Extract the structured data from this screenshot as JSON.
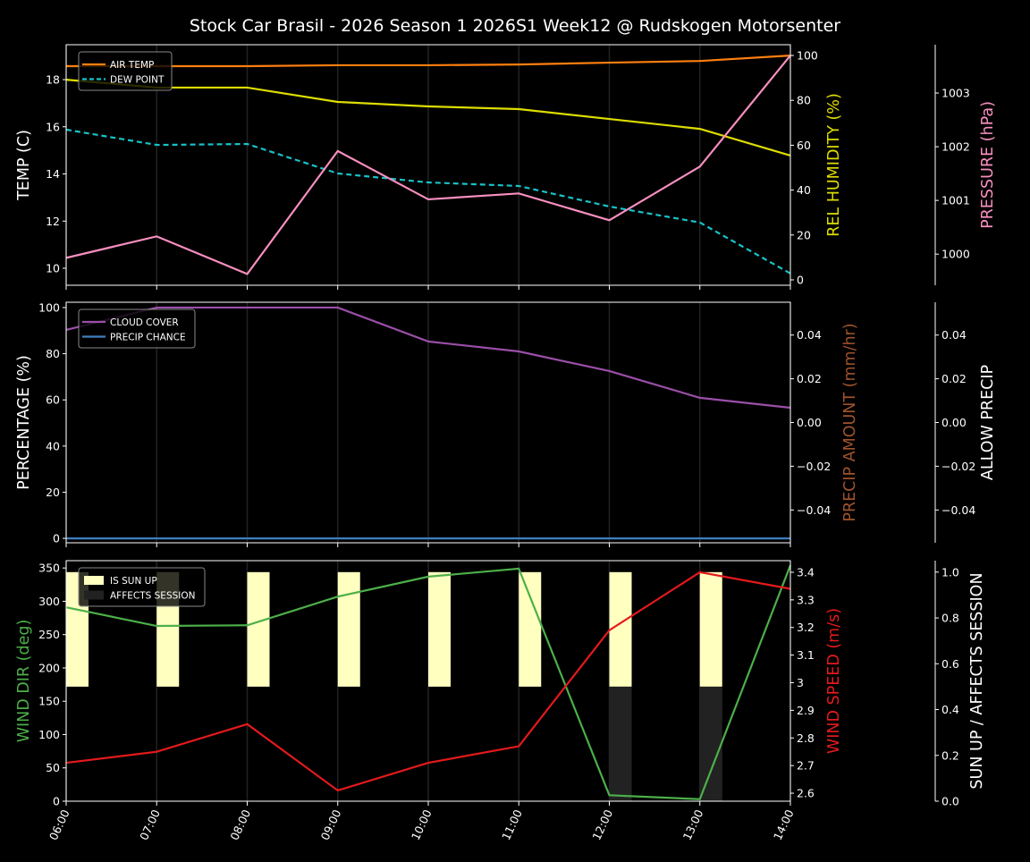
{
  "title": "Stock Car Brasil - 2026 Season 1 2026S1 Week12 @ Rudskogen Motorsenter",
  "chart_data": [
    {
      "type": "line",
      "x": [
        "06:00",
        "07:00",
        "08:00",
        "09:00",
        "10:00",
        "11:00",
        "12:00",
        "13:00",
        "14:00"
      ],
      "axes": {
        "left": {
          "label": "TEMP (C)",
          "range": [
            9.28,
            19.48
          ],
          "ticks": [
            10,
            12,
            14,
            16,
            18
          ],
          "color": "#ffffff"
        },
        "right1": {
          "label": "REL HUMIDITY (%)",
          "range": [
            -2.4,
            104.8
          ],
          "ticks": [
            0,
            20,
            40,
            60,
            80,
            100
          ],
          "color": "#dddd00"
        },
        "right2": {
          "label": "PRESSURE (hPa)",
          "range": [
            999.42,
            1003.9
          ],
          "ticks": [
            1000,
            1001,
            1002,
            1003
          ],
          "color": "#f78fbf"
        }
      },
      "legend_position": "top-left",
      "series": [
        {
          "name": "AIR TEMP",
          "axis": "left",
          "color": "#ff7f0e",
          "style": "solid",
          "legend": true,
          "values": [
            18.57,
            18.57,
            18.57,
            18.61,
            18.61,
            18.64,
            18.72,
            18.79,
            19.02
          ]
        },
        {
          "name": "DEW POINT",
          "axis": "left",
          "color": "#17c3c8",
          "style": "dashed",
          "legend": true,
          "values": [
            15.88,
            15.23,
            15.27,
            14.02,
            13.64,
            13.49,
            12.62,
            11.94,
            9.78
          ]
        },
        {
          "axis": "right1",
          "color": "#dddd00",
          "style": "solid",
          "legend": false,
          "values": [
            89.2,
            85.7,
            85.7,
            79.3,
            77.3,
            76.1,
            71.7,
            67.3,
            55.4
          ]
        },
        {
          "axis": "right2",
          "color": "#f78fbf",
          "style": "solid",
          "legend": false,
          "values": [
            999.93,
            1000.33,
            999.63,
            1001.92,
            1001.02,
            1001.13,
            1000.63,
            1001.63,
            1003.7
          ]
        }
      ]
    },
    {
      "type": "line",
      "x": [
        "06:00",
        "07:00",
        "08:00",
        "09:00",
        "10:00",
        "11:00",
        "12:00",
        "13:00",
        "14:00"
      ],
      "axes": {
        "left": {
          "label": "PERCENTAGE (%)",
          "range": [
            -1.9,
            102.3
          ],
          "ticks": [
            0,
            20,
            40,
            60,
            80,
            100
          ],
          "color": "#ffffff"
        },
        "right1": {
          "label": "PRECIP AMOUNT (mm/hr)",
          "range": [
            -0.055,
            0.055
          ],
          "ticks": [
            -0.04,
            -0.02,
            0.0,
            0.02,
            0.04
          ],
          "tick_labels": [
            "−0.04",
            "−0.02",
            "0.00",
            "0.02",
            "0.04"
          ],
          "color": "#a0522d"
        },
        "right2": {
          "label": "ALLOW PRECIP",
          "range": [
            -0.055,
            0.055
          ],
          "ticks": [
            -0.04,
            -0.02,
            0.0,
            0.02,
            0.04
          ],
          "tick_labels": [
            "−0.04",
            "−0.02",
            "0.00",
            "0.02",
            "0.04"
          ],
          "color": "#ffffff"
        }
      },
      "legend_position": "top-left",
      "series": [
        {
          "name": "CLOUD COVER",
          "axis": "left",
          "color": "#9b4fa8",
          "style": "solid",
          "legend": true,
          "values": [
            90.3,
            100,
            100,
            100,
            85.3,
            81,
            72.5,
            60.9,
            56.6
          ]
        },
        {
          "name": "PRECIP CHANCE",
          "axis": "left",
          "color": "#3f7fc0",
          "style": "solid",
          "legend": true,
          "values": [
            0,
            0,
            0,
            0,
            0,
            0,
            0,
            0,
            0
          ]
        }
      ]
    },
    {
      "type": "line",
      "x": [
        "06:00",
        "07:00",
        "08:00",
        "09:00",
        "10:00",
        "11:00",
        "12:00",
        "13:00",
        "14:00"
      ],
      "axes": {
        "left": {
          "label": "WIND DIR (deg)",
          "range": [
            0,
            361
          ],
          "ticks": [
            0,
            50,
            100,
            150,
            200,
            250,
            300,
            350
          ],
          "color": "#4daf4a"
        },
        "right1": {
          "label": "WIND SPEED (m/s)",
          "range": [
            2.571,
            3.442
          ],
          "ticks": [
            2.6,
            2.7,
            2.8,
            2.9,
            3.0,
            3.1,
            3.2,
            3.3,
            3.4
          ],
          "color": "#e41a1c"
        },
        "right2": {
          "label": "SUN UP / AFFECTS SESSION",
          "range": [
            0,
            1.05
          ],
          "ticks": [
            0,
            0.2,
            0.4,
            0.6,
            0.8,
            1.0
          ],
          "tick_labels": [
            "0.0",
            "0.2",
            "0.4",
            "0.6",
            "0.8",
            "1.0"
          ],
          "color": "#ffffff"
        }
      },
      "legend_position": "top-left",
      "bars": [
        {
          "name": "IS SUN UP",
          "color": "#ffffc0",
          "from": 0.5,
          "to": 1.0,
          "hours": [
            "06:00",
            "07:00",
            "08:00",
            "09:00",
            "10:00",
            "11:00",
            "12:00",
            "13:00"
          ]
        },
        {
          "name": "AFFECTS SESSION",
          "color": "#222222",
          "from": 0.0,
          "to": 0.5,
          "hours": [
            "12:00",
            "13:00"
          ]
        }
      ],
      "series": [
        {
          "axis": "left",
          "color": "#4daf4a",
          "style": "solid",
          "legend": false,
          "values": [
            291,
            263,
            264,
            307,
            337,
            349,
            9,
            3,
            354
          ]
        },
        {
          "axis": "right1",
          "color": "#e41a1c",
          "style": "solid",
          "legend": false,
          "values": [
            2.71,
            2.75,
            2.85,
            2.61,
            2.71,
            2.77,
            3.19,
            3.4,
            3.34
          ]
        }
      ]
    }
  ]
}
